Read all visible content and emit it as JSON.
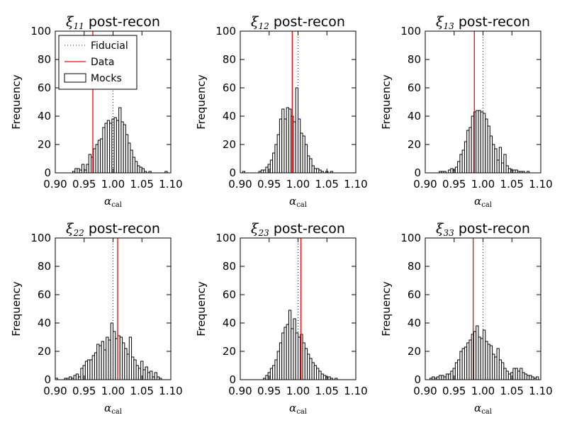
{
  "chart_data": [
    {
      "type": "histogram",
      "title_symbol": "ξ",
      "title_subscript": "11",
      "title_text": "post-recon",
      "xlabel_symbol": "α",
      "xlabel_subscript": "cal",
      "ylabel": "Frequency",
      "xlim": [
        0.9,
        1.1
      ],
      "ylim": [
        0,
        100
      ],
      "xticks": [
        "0.90",
        "0.95",
        "1.00",
        "1.05",
        "1.10"
      ],
      "yticks": [
        "0",
        "20",
        "40",
        "60",
        "80",
        "100"
      ],
      "bin_start": 0.93,
      "bin_width": 0.004,
      "counts": [
        1,
        3,
        3,
        2,
        6,
        2,
        6,
        13,
        11,
        17,
        20,
        23,
        24,
        32,
        35,
        37,
        35,
        38,
        39,
        37,
        46,
        36,
        34,
        27,
        21,
        16,
        11,
        8,
        5,
        4,
        3,
        1,
        0,
        1,
        0,
        0,
        0,
        0,
        0,
        0,
        1
      ],
      "fiducial": 1.0,
      "data": 0.965,
      "legend": {
        "fiducial_label": "Fiducial",
        "data_label": "Data",
        "mocks_label": "Mocks",
        "position": "upper-left"
      }
    },
    {
      "type": "histogram",
      "title_symbol": "ξ",
      "title_subscript": "12",
      "title_text": "post-recon",
      "xlabel_symbol": "α",
      "xlabel_subscript": "cal",
      "ylabel": "Frequency",
      "xlim": [
        0.9,
        1.1
      ],
      "ylim": [
        0,
        100
      ],
      "xticks": [
        "0.90",
        "0.95",
        "1.00",
        "1.05",
        "1.10"
      ],
      "yticks": [
        "0",
        "20",
        "40",
        "60",
        "80",
        "100"
      ],
      "bin_start": 0.9,
      "bin_width": 0.004,
      "counts": [
        0,
        1,
        0,
        0,
        0,
        0,
        0,
        0,
        1,
        2,
        2,
        4,
        6,
        9,
        14,
        20,
        27,
        38,
        45,
        38,
        46,
        45,
        40,
        36,
        60,
        38,
        28,
        26,
        20,
        12,
        10,
        5,
        3,
        3,
        2,
        1,
        0,
        1,
        0,
        1
      ],
      "fiducial": 1.0,
      "data": 0.99
    },
    {
      "type": "histogram",
      "title_symbol": "ξ",
      "title_subscript": "13",
      "title_text": "post-recon",
      "xlabel_symbol": "α",
      "xlabel_subscript": "cal",
      "ylabel": "Frequency",
      "xlim": [
        0.9,
        1.1
      ],
      "ylim": [
        0,
        100
      ],
      "xticks": [
        "0.90",
        "0.95",
        "1.00",
        "1.05",
        "1.10"
      ],
      "yticks": [
        "0",
        "20",
        "40",
        "60",
        "80",
        "100"
      ],
      "bin_start": 0.92,
      "bin_width": 0.004,
      "counts": [
        0,
        1,
        1,
        1,
        0,
        2,
        3,
        2,
        4,
        8,
        13,
        16,
        22,
        30,
        32,
        40,
        43,
        44,
        44,
        43,
        42,
        38,
        33,
        26,
        20,
        17,
        9,
        18,
        7,
        13,
        5,
        3,
        2,
        2,
        2,
        1,
        1,
        1,
        0,
        1
      ],
      "fiducial": 1.0,
      "data": 0.985
    },
    {
      "type": "histogram",
      "title_symbol": "ξ",
      "title_subscript": "22",
      "title_text": "post-recon",
      "xlabel_symbol": "α",
      "xlabel_subscript": "cal",
      "ylabel": "Frequency",
      "xlim": [
        0.9,
        1.1
      ],
      "ylim": [
        0,
        100
      ],
      "xticks": [
        "0.90",
        "0.95",
        "1.00",
        "1.05",
        "1.10"
      ],
      "yticks": [
        "0",
        "20",
        "40",
        "60",
        "80",
        "100"
      ],
      "bin_start": 0.9,
      "bin_width": 0.004,
      "counts": [
        1,
        0,
        0,
        0,
        1,
        1,
        2,
        1,
        3,
        4,
        2,
        8,
        10,
        13,
        14,
        14,
        17,
        19,
        25,
        24,
        27,
        21,
        30,
        28,
        40,
        34,
        29,
        31,
        30,
        26,
        22,
        18,
        30,
        16,
        14,
        10,
        8,
        13,
        7,
        9,
        5,
        6,
        2,
        5,
        2,
        1
      ],
      "fiducial": 1.0,
      "data": 1.008
    },
    {
      "type": "histogram",
      "title_symbol": "ξ",
      "title_subscript": "23",
      "title_text": "post-recon",
      "xlabel_symbol": "α",
      "xlabel_subscript": "cal",
      "ylabel": "Frequency",
      "xlim": [
        0.9,
        1.1
      ],
      "ylim": [
        0,
        100
      ],
      "xticks": [
        "0.90",
        "0.95",
        "1.00",
        "1.05",
        "1.10"
      ],
      "yticks": [
        "0",
        "20",
        "40",
        "60",
        "80",
        "100"
      ],
      "bin_start": 0.94,
      "bin_width": 0.004,
      "counts": [
        1,
        3,
        5,
        8,
        10,
        14,
        20,
        26,
        33,
        37,
        39,
        49,
        36,
        43,
        33,
        30,
        32,
        26,
        22,
        18,
        15,
        12,
        10,
        8,
        6,
        4,
        3,
        2,
        2,
        1,
        0,
        1
      ],
      "fiducial": 1.0,
      "data": 1.005
    },
    {
      "type": "histogram",
      "title_symbol": "ξ",
      "title_subscript": "33",
      "title_text": "post-recon",
      "xlabel_symbol": "α",
      "xlabel_subscript": "cal",
      "ylabel": "Frequency",
      "xlim": [
        0.9,
        1.1
      ],
      "ylim": [
        0,
        100
      ],
      "xticks": [
        "0.90",
        "0.95",
        "1.00",
        "1.05",
        "1.10"
      ],
      "yticks": [
        "0",
        "20",
        "40",
        "60",
        "80",
        "100"
      ],
      "bin_start": 0.9,
      "bin_width": 0.004,
      "counts": [
        0,
        0,
        1,
        2,
        1,
        2,
        3,
        3,
        2,
        4,
        4,
        6,
        8,
        12,
        14,
        20,
        22,
        23,
        26,
        28,
        32,
        34,
        38,
        30,
        29,
        35,
        27,
        25,
        24,
        18,
        16,
        22,
        14,
        12,
        8,
        6,
        4,
        5,
        8,
        8,
        6,
        8,
        5,
        4,
        3,
        3,
        2,
        1,
        2
      ],
      "fiducial": 1.0,
      "data": 0.983
    }
  ],
  "colors": {
    "data_line": "#ff0000",
    "fiducial_line": "#0000ff",
    "bar_fill": "#ffffff",
    "bar_edge": "#000000"
  }
}
